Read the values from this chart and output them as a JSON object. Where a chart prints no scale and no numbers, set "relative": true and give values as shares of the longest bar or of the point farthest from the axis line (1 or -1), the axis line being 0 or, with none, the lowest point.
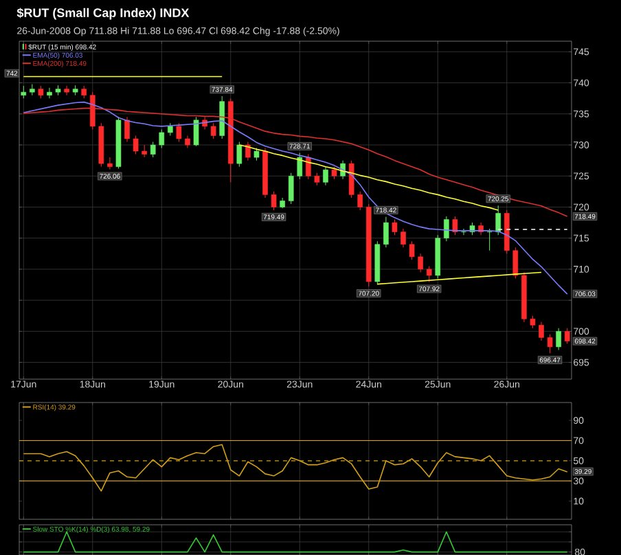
{
  "chart_data": [
    {
      "type": "candlestick",
      "title": "$RUT (Small Cap Index) INDX",
      "subtitle": "26-Jun-2008   Op 711.88  Hi 711.88  Lo 696.47  Cl 698.42  Chg -17.88 (-2.50%)",
      "categories": [
        "17Jun",
        null,
        null,
        null,
        null,
        null,
        null,
        null,
        "18Jun",
        null,
        null,
        null,
        null,
        null,
        null,
        null,
        "19Jun",
        null,
        null,
        null,
        null,
        null,
        null,
        null,
        "20Jun",
        null,
        null,
        null,
        null,
        null,
        null,
        null,
        "23Jun",
        null,
        null,
        null,
        null,
        null,
        null,
        null,
        "24Jun",
        null,
        null,
        null,
        null,
        null,
        null,
        null,
        "25Jun",
        null,
        null,
        null,
        null,
        null,
        null,
        null,
        "26Jun",
        null,
        null,
        null,
        null,
        null,
        null,
        null
      ],
      "ylim": [
        692.3,
        746.7
      ],
      "yticks": [
        695,
        700,
        {
          "value": 705,
          "label": null
        },
        710,
        715,
        720,
        725,
        730,
        735,
        740,
        745
      ],
      "grid": true,
      "legend": "top left",
      "series": [
        {
          "name": "$RUT (15 min) 698.42",
          "type": "candlestick",
          "ohlc": [
            [
              738,
              739.5,
              737.5,
              738.5
            ],
            [
              738.5,
              739.8,
              738,
              739
            ],
            [
              739,
              739.5,
              737.5,
              738
            ],
            [
              738,
              739.2,
              737.5,
              738.5
            ],
            [
              738.5,
              739.6,
              738,
              739
            ],
            [
              739,
              739.5,
              738,
              738.5
            ],
            [
              738.5,
              739.6,
              738,
              739
            ],
            [
              739,
              739.5,
              737.5,
              738
            ],
            [
              738,
              738.5,
              732.5,
              733
            ],
            [
              733,
              733.5,
              726.5,
              727
            ],
            [
              727,
              728,
              726.06,
              726.5
            ],
            [
              726.5,
              734.5,
              726.2,
              734
            ],
            [
              734,
              734.5,
              730.5,
              731
            ],
            [
              731,
              731.5,
              728.5,
              729
            ],
            [
              729,
              730,
              728,
              728.5
            ],
            [
              728.5,
              730.5,
              728,
              730
            ],
            [
              730,
              732.5,
              729.5,
              732
            ],
            [
              732,
              733.5,
              731.5,
              733
            ],
            [
              733,
              733.5,
              730.5,
              731
            ],
            [
              731,
              731.5,
              729.5,
              730
            ],
            [
              730,
              734.5,
              729.8,
              734
            ],
            [
              734,
              734.5,
              732.5,
              733
            ],
            [
              733,
              733.5,
              731,
              731.5
            ],
            [
              731.5,
              737.84,
              731,
              737
            ],
            [
              737,
              737.5,
              724,
              727
            ],
            [
              727,
              730.5,
              726.5,
              730
            ],
            [
              730,
              730.5,
              727.5,
              728
            ],
            [
              728,
              729.5,
              727.5,
              729
            ],
            [
              729,
              729.5,
              721.5,
              722
            ],
            [
              722,
              722.5,
              719.49,
              720
            ],
            [
              720,
              721.5,
              719.8,
              721
            ],
            [
              721,
              725.5,
              720.5,
              725
            ],
            [
              725,
              728.71,
              724.5,
              728
            ],
            [
              728,
              728.5,
              724.5,
              725
            ],
            [
              725,
              725.5,
              723.5,
              724
            ],
            [
              724,
              726.5,
              723.5,
              726
            ],
            [
              726,
              726.5,
              724.5,
              725
            ],
            [
              725,
              727.5,
              724.5,
              727
            ],
            [
              727,
              727.5,
              721.5,
              722
            ],
            [
              722,
              722.5,
              719.5,
              720
            ],
            [
              720,
              720.5,
              707.2,
              708
            ],
            [
              708,
              714.5,
              707.5,
              714
            ],
            [
              714,
              718.42,
              713.5,
              717.5
            ],
            [
              717.5,
              718,
              715.5,
              716
            ],
            [
              716,
              716.5,
              713.5,
              714
            ],
            [
              714,
              714.5,
              711.5,
              712
            ],
            [
              712,
              712.5,
              709.5,
              710
            ],
            [
              710,
              710.5,
              707.92,
              709
            ],
            [
              709,
              715.5,
              708.5,
              715
            ],
            [
              715,
              718.5,
              714.5,
              718
            ],
            [
              718,
              718.5,
              715.5,
              716
            ],
            [
              716,
              716.5,
              715.5,
              716
            ],
            [
              716,
              717.5,
              715.5,
              717
            ],
            [
              717,
              717.5,
              715.5,
              716
            ],
            [
              716,
              716.5,
              713,
              716
            ],
            [
              716,
              720.25,
              715.5,
              719
            ],
            [
              719,
              719.5,
              712.5,
              713
            ],
            [
              713,
              713.5,
              708.5,
              709
            ],
            [
              709,
              709.5,
              701.5,
              702
            ],
            [
              702,
              702.5,
              700.5,
              701
            ],
            [
              701,
              701.5,
              698.5,
              699
            ],
            [
              699,
              699.5,
              696.47,
              697.5
            ],
            [
              697.5,
              700.5,
              697,
              700
            ],
            [
              700,
              700.5,
              698,
              698.42
            ]
          ]
        },
        {
          "name": "EMA(50) 706.03",
          "type": "line",
          "color": "#7b7bff",
          "values": [
            735.2,
            735.5,
            735.8,
            736.1,
            736.4,
            736.6,
            736.8,
            736.9,
            736.5,
            736,
            735.3,
            734.4,
            733.9,
            733.6,
            733.4,
            733.1,
            733,
            733.1,
            733.2,
            733.3,
            733.4,
            733.6,
            733.8,
            733.9,
            733,
            732.1,
            731.3,
            730.4,
            729.8,
            729.4,
            729,
            728.7,
            728.3,
            728,
            727.6,
            727.2,
            726.7,
            726,
            725.2,
            723.6,
            721.6,
            720.1,
            719,
            718.3,
            717.7,
            717.2,
            716.8,
            716.5,
            716.4,
            716.3,
            716.2,
            716.2,
            716.2,
            716.2,
            716.2,
            716.1,
            715.5,
            714.6,
            713.1,
            711.6,
            710.4,
            708.9,
            707.4,
            706
          ]
        },
        {
          "name": "EMA(200) 718.49",
          "type": "line",
          "color": "#e03030",
          "values": [
            735.1,
            735.2,
            735.3,
            735.4,
            735.6,
            735.7,
            735.8,
            735.9,
            735.9,
            735.8,
            735.7,
            735.6,
            735.4,
            735.3,
            735.2,
            735.1,
            735,
            734.9,
            734.8,
            734.7,
            734.7,
            734.6,
            734.6,
            734.5,
            734.3,
            733.7,
            733.2,
            732.7,
            732.2,
            731.9,
            731.7,
            731.6,
            731.4,
            731.3,
            731.1,
            731,
            730.8,
            730.5,
            730.2,
            729.7,
            729.2,
            728.6,
            728.1,
            727.5,
            727,
            726.5,
            726,
            725.3,
            724.8,
            724.4,
            724,
            723.6,
            723.2,
            722.7,
            722.3,
            721.9,
            721.5,
            721.1,
            720.8,
            720.5,
            720.2,
            719.6,
            719.1,
            718.5
          ]
        },
        {
          "type": "line",
          "color": "#ffff33",
          "values": [
            741,
            741,
            741,
            741,
            741,
            741,
            741,
            741,
            741,
            741,
            741,
            741,
            741,
            741,
            741,
            741,
            741,
            741,
            741,
            741,
            741,
            741,
            741,
            741,
            null,
            null,
            null,
            null,
            null,
            null,
            null,
            null,
            null,
            null,
            null,
            null,
            null,
            null,
            null,
            null,
            null,
            null,
            null,
            null,
            null,
            null,
            null,
            null,
            null,
            null,
            null,
            null,
            null,
            null,
            null,
            null,
            null,
            null,
            null,
            null,
            null,
            null,
            null,
            null
          ]
        },
        {
          "type": "line",
          "color": "#ffff33",
          "values": [
            null,
            null,
            null,
            null,
            null,
            null,
            null,
            null,
            null,
            null,
            null,
            null,
            null,
            null,
            null,
            null,
            null,
            null,
            null,
            null,
            null,
            null,
            null,
            null,
            null,
            730,
            729.7,
            729.3,
            729,
            728.6,
            728.3,
            727.9,
            727.6,
            727.2,
            726.9,
            726.5,
            726.2,
            725.8,
            725.5,
            725.1,
            724.8,
            724.4,
            724.1,
            723.7,
            723.4,
            723,
            722.7,
            722.3,
            722,
            721.6,
            721.3,
            720.9,
            720.6,
            720.2,
            719.9,
            719.5,
            null,
            null,
            null,
            null,
            null,
            null,
            null,
            null
          ]
        },
        {
          "type": "line",
          "color": "#ffff33",
          "values": [
            null,
            null,
            null,
            null,
            null,
            null,
            null,
            null,
            null,
            null,
            null,
            null,
            null,
            null,
            null,
            null,
            null,
            null,
            null,
            null,
            null,
            null,
            null,
            null,
            null,
            null,
            null,
            null,
            null,
            null,
            null,
            null,
            null,
            null,
            null,
            null,
            null,
            null,
            null,
            null,
            null,
            707.6,
            707.7,
            707.8,
            707.9,
            708,
            708.1,
            708.2,
            708.3,
            708.4,
            708.5,
            708.6,
            708.7,
            708.8,
            708.9,
            709,
            709.1,
            709.2,
            709.3,
            709.4,
            709.5,
            null,
            null,
            null
          ]
        },
        {
          "type": "line",
          "color": "#ffffff",
          "line_style": "dashed",
          "values": [
            null,
            null,
            null,
            null,
            null,
            null,
            null,
            null,
            null,
            null,
            null,
            null,
            null,
            null,
            null,
            null,
            null,
            null,
            null,
            null,
            null,
            null,
            null,
            null,
            null,
            null,
            null,
            null,
            null,
            null,
            null,
            null,
            null,
            null,
            null,
            null,
            null,
            null,
            null,
            null,
            null,
            null,
            null,
            null,
            null,
            null,
            null,
            null,
            null,
            null,
            null,
            null,
            null,
            null,
            null,
            716.4,
            716.4,
            716.4,
            716.4,
            716.4,
            716.4,
            716.4,
            716.4,
            716.4
          ]
        }
      ],
      "annotations": [
        "742",
        {
          "text": "737.84",
          "y": 737.84
        },
        {
          "text": "726.06",
          "y": 726.06
        },
        {
          "text": "728.71",
          "y": 728.71
        },
        {
          "text": "719.49",
          "y": 719.49
        },
        {
          "text": "718.42",
          "y": 718.42
        },
        {
          "text": "720.25",
          "y": 720.25
        },
        {
          "text": "707.20",
          "y": 707.2
        },
        {
          "text": "707.92",
          "y": 707.92
        },
        {
          "text": "696.47",
          "y": 696.47
        },
        {
          "text": "718.49",
          "y": 718.49
        },
        {
          "text": "706.03",
          "y": 706.03
        },
        {
          "text": "698.42",
          "y": 698.42
        }
      ]
    },
    {
      "type": "line",
      "categories": [
        null,
        null,
        null,
        null,
        null,
        null,
        null,
        null,
        null,
        null,
        null,
        null,
        null,
        null,
        null,
        null,
        null,
        null,
        null,
        null,
        null,
        null,
        null,
        null,
        null,
        null,
        null,
        null,
        null,
        null,
        null,
        null,
        null,
        null,
        null,
        null,
        null,
        null,
        null,
        null,
        null,
        null,
        null,
        null,
        null,
        null,
        null,
        null,
        null,
        null,
        null,
        null,
        null,
        null,
        null,
        null,
        null,
        null,
        null,
        null,
        null,
        null,
        null,
        null
      ],
      "ylim": [
        -8,
        107.7
      ],
      "yticks": [
        10,
        30,
        50,
        70,
        90
      ],
      "tick_labels": "y",
      "grid": "x",
      "legend": "top left",
      "series": [
        {
          "name": "RSI(14) 39.29",
          "color": "#d4a017",
          "values": [
            57,
            57,
            57,
            54,
            57,
            59,
            55,
            45,
            33,
            20,
            38,
            40,
            34,
            33,
            42,
            51,
            44,
            53,
            51,
            55,
            58,
            57,
            64,
            66,
            41,
            35,
            49,
            44,
            37,
            35,
            40,
            53,
            50,
            46,
            46,
            48,
            51,
            53,
            47,
            34,
            22,
            24,
            50,
            46,
            47,
            52,
            44,
            34,
            48,
            58,
            54,
            53,
            52,
            50,
            55,
            45,
            35,
            33,
            32,
            31,
            32,
            34,
            42,
            39
          ]
        }
      ],
      "ref_lines": [
        {
          "axis": "y",
          "value": 70,
          "color": "#d4a017"
        },
        {
          "axis": "y",
          "value": 30,
          "color": "#d4a017"
        },
        {
          "axis": "y",
          "value": 50,
          "color": "#d4a017",
          "line_style": "dashed"
        }
      ],
      "annotations": [
        {
          "text": "39.29",
          "y": 39.29
        }
      ]
    },
    {
      "type": "line",
      "relative": true,
      "tick_labels": false,
      "grid": true,
      "legend": "top left",
      "categories": [
        null,
        null,
        null,
        null,
        null,
        null,
        null,
        null,
        null,
        null,
        null,
        null,
        null,
        null,
        null,
        null,
        null,
        null,
        null,
        null,
        null,
        null,
        null,
        null,
        null,
        null,
        null,
        null,
        null,
        null,
        null,
        null,
        null,
        null,
        null,
        null,
        null,
        null,
        null,
        null,
        null,
        null,
        null,
        null,
        null,
        null,
        null,
        null,
        null,
        null,
        null,
        null,
        null,
        null,
        null,
        null,
        null,
        null,
        null,
        null,
        null,
        null,
        null,
        null
      ],
      "series": [
        {
          "name": "Slow STO %K(14) %D(3) 63.98, 59.29",
          "color": "#33cc33",
          "values": [
            0,
            0,
            0,
            0,
            0,
            1,
            0,
            0,
            0,
            0,
            0,
            0,
            0,
            0,
            0,
            0,
            0,
            0,
            0,
            0,
            0.7,
            0,
            0.85,
            0,
            0,
            0,
            0,
            0,
            0,
            0,
            0,
            0,
            0,
            0,
            0,
            0,
            0,
            0,
            0,
            0,
            0,
            0,
            0,
            0,
            0.1,
            0,
            0,
            0,
            0,
            1,
            0,
            0,
            0,
            0,
            0,
            0,
            0,
            0,
            0,
            0,
            0,
            0,
            0,
            0
          ]
        }
      ],
      "annotations": [
        "80"
      ]
    }
  ]
}
